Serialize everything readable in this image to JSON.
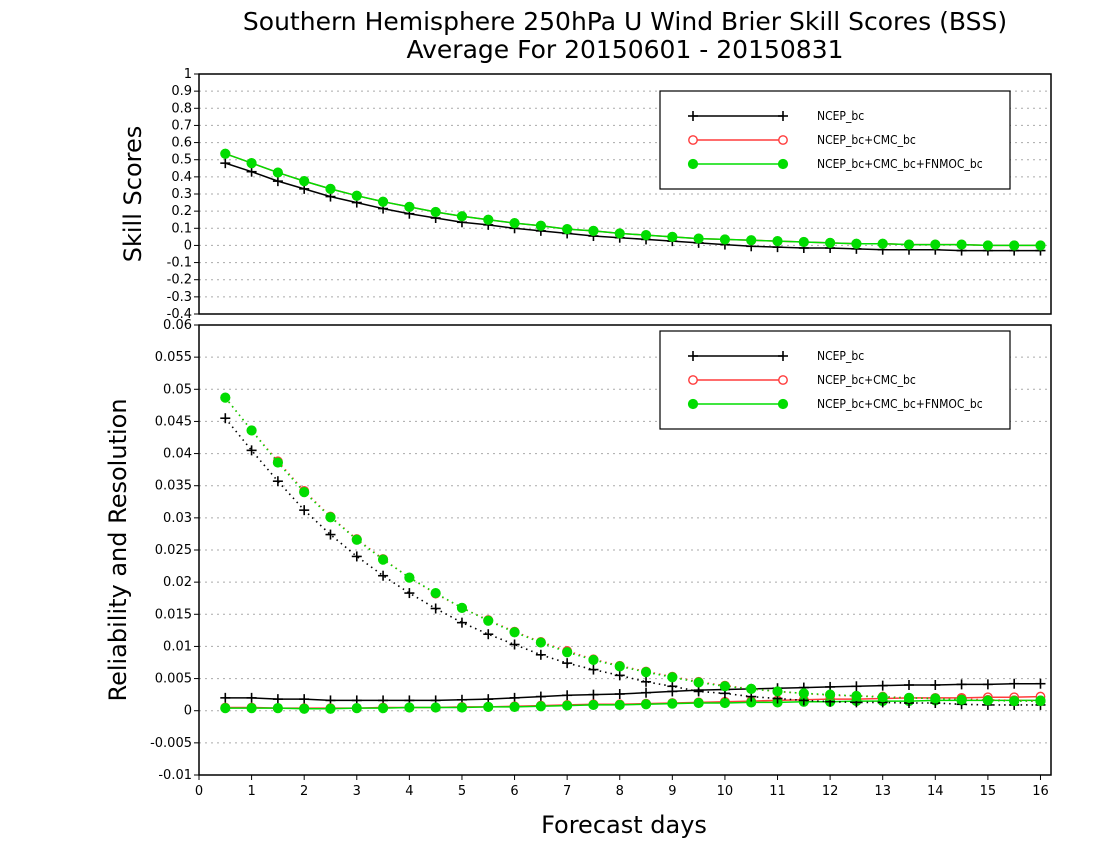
{
  "title": {
    "line1": "Southern Hemisphere 250hPa U Wind Brier Skill Scores (BSS)",
    "line2": "Average For 20150601 - 20150831"
  },
  "colors": {
    "NCEP_bc": "#000000",
    "NCEP_bc+CMC_bc": "#ff3b3b",
    "NCEP_bc+CMC_bc+FNMOC_bc": "#00dd00"
  },
  "chart_data": [
    {
      "type": "line",
      "panel": "top",
      "ylabel": "Skill Scores",
      "xlabel": "",
      "xlim": [
        0,
        16.2
      ],
      "ylim": [
        -0.4,
        1
      ],
      "yticks": [
        "-0.4",
        "-0.3",
        "-0.2",
        "-0.1",
        "0",
        "0.1",
        "0.2",
        "0.3",
        "0.4",
        "0.5",
        "0.6",
        "0.7",
        "0.8",
        "0.9",
        "1"
      ],
      "grid": true,
      "legend_position": "top-right",
      "x": [
        0.5,
        1,
        1.5,
        2,
        2.5,
        3,
        3.5,
        4,
        4.5,
        5,
        5.5,
        6,
        6.5,
        7,
        7.5,
        8,
        8.5,
        9,
        9.5,
        10,
        10.5,
        11,
        11.5,
        12,
        12.5,
        13,
        13.5,
        14,
        14.5,
        15,
        15.5,
        16
      ],
      "series": [
        {
          "name": "NCEP_bc",
          "marker": "plus",
          "values": [
            0.48,
            0.43,
            0.375,
            0.33,
            0.285,
            0.25,
            0.215,
            0.185,
            0.16,
            0.135,
            0.12,
            0.1,
            0.085,
            0.07,
            0.055,
            0.045,
            0.035,
            0.025,
            0.015,
            0.005,
            -0.005,
            -0.01,
            -0.015,
            -0.015,
            -0.02,
            -0.025,
            -0.025,
            -0.025,
            -0.03,
            -0.03,
            -0.03,
            -0.03
          ]
        },
        {
          "name": "NCEP_bc+CMC_bc",
          "marker": "open-circle",
          "values": [
            0.535,
            0.48,
            0.425,
            0.375,
            0.33,
            0.29,
            0.255,
            0.225,
            0.195,
            0.17,
            0.15,
            0.13,
            0.115,
            0.095,
            0.085,
            0.07,
            0.06,
            0.05,
            0.04,
            0.035,
            0.03,
            0.025,
            0.02,
            0.015,
            0.01,
            0.01,
            0.005,
            0.005,
            0.005,
            0.0,
            0.0,
            0.0
          ]
        },
        {
          "name": "NCEP_bc+CMC_bc+FNMOC_bc",
          "marker": "filled-circle",
          "values": [
            0.535,
            0.48,
            0.425,
            0.375,
            0.33,
            0.29,
            0.255,
            0.225,
            0.195,
            0.17,
            0.15,
            0.13,
            0.115,
            0.095,
            0.085,
            0.07,
            0.06,
            0.05,
            0.04,
            0.035,
            0.03,
            0.025,
            0.02,
            0.015,
            0.01,
            0.01,
            0.005,
            0.005,
            0.005,
            0.0,
            0.0,
            0.0
          ]
        }
      ],
      "legend": [
        "NCEP_bc",
        "NCEP_bc+CMC_bc",
        "NCEP_bc+CMC_bc+FNMOC_bc"
      ]
    },
    {
      "type": "line",
      "panel": "bottom",
      "ylabel": "Reliability and Resolution",
      "xlabel": "Forecast days",
      "xlim": [
        0,
        16.2
      ],
      "ylim": [
        -0.01,
        0.06
      ],
      "xticks": [
        "0",
        "1",
        "2",
        "3",
        "4",
        "5",
        "6",
        "7",
        "8",
        "9",
        "10",
        "11",
        "12",
        "13",
        "14",
        "15",
        "16"
      ],
      "yticks": [
        "-0.01",
        "-0.005",
        "0",
        "0.005",
        "0.01",
        "0.015",
        "0.02",
        "0.025",
        "0.03",
        "0.035",
        "0.04",
        "0.045",
        "0.05",
        "0.055",
        "0.06"
      ],
      "grid": true,
      "legend_position": "top-right",
      "x": [
        0.5,
        1,
        1.5,
        2,
        2.5,
        3,
        3.5,
        4,
        4.5,
        5,
        5.5,
        6,
        6.5,
        7,
        7.5,
        8,
        8.5,
        9,
        9.5,
        10,
        10.5,
        11,
        11.5,
        12,
        12.5,
        13,
        13.5,
        14,
        14.5,
        15,
        15.5,
        16
      ],
      "series": [
        {
          "name": "NCEP_bc",
          "metric": "reliability",
          "style": "solid",
          "marker": "plus",
          "values": [
            0.002,
            0.002,
            0.0018,
            0.0018,
            0.0016,
            0.0016,
            0.0016,
            0.0016,
            0.0016,
            0.0017,
            0.0018,
            0.002,
            0.0022,
            0.0024,
            0.0025,
            0.0026,
            0.0028,
            0.003,
            0.0032,
            0.0033,
            0.0034,
            0.0035,
            0.0036,
            0.0037,
            0.0038,
            0.0039,
            0.004,
            0.004,
            0.0041,
            0.0041,
            0.0042,
            0.0042
          ]
        },
        {
          "name": "NCEP_bc+CMC_bc",
          "metric": "reliability",
          "style": "solid",
          "marker": "open-circle",
          "values": [
            0.0005,
            0.0005,
            0.0004,
            0.0004,
            0.0004,
            0.0004,
            0.0005,
            0.0005,
            0.0005,
            0.0006,
            0.0006,
            0.0007,
            0.0008,
            0.0009,
            0.001,
            0.001,
            0.0011,
            0.0012,
            0.0013,
            0.0014,
            0.0015,
            0.0016,
            0.0017,
            0.0018,
            0.0018,
            0.0019,
            0.002,
            0.002,
            0.002,
            0.0021,
            0.0021,
            0.0022
          ]
        },
        {
          "name": "NCEP_bc+CMC_bc+FNMOC_bc",
          "metric": "reliability",
          "style": "solid",
          "marker": "filled-circle",
          "values": [
            0.0004,
            0.0004,
            0.0004,
            0.0003,
            0.0003,
            0.0004,
            0.0004,
            0.0005,
            0.0005,
            0.0005,
            0.0006,
            0.0006,
            0.0007,
            0.0008,
            0.0009,
            0.0009,
            0.001,
            0.0011,
            0.0012,
            0.0012,
            0.0013,
            0.0013,
            0.0014,
            0.0014,
            0.0015,
            0.0015,
            0.0015,
            0.0016,
            0.0016,
            0.0016,
            0.0016,
            0.0016
          ]
        },
        {
          "name": "NCEP_bc",
          "metric": "resolution",
          "style": "dotted",
          "marker": "plus",
          "values": [
            0.0455,
            0.0405,
            0.0357,
            0.0312,
            0.0274,
            0.024,
            0.021,
            0.0183,
            0.0159,
            0.0137,
            0.0119,
            0.0103,
            0.0087,
            0.0074,
            0.0064,
            0.0055,
            0.0045,
            0.0038,
            0.003,
            0.0027,
            0.0022,
            0.0019,
            0.0016,
            0.0014,
            0.0013,
            0.0013,
            0.0012,
            0.0012,
            0.001,
            0.0009,
            0.0009,
            0.0009
          ]
        },
        {
          "name": "NCEP_bc+CMC_bc",
          "metric": "resolution",
          "style": "dotted",
          "marker": "open-circle",
          "values": [
            0.0487,
            0.0436,
            0.0388,
            0.0342,
            0.0302,
            0.0267,
            0.0236,
            0.0207,
            0.0182,
            0.016,
            0.0141,
            0.0123,
            0.0107,
            0.0093,
            0.008,
            0.007,
            0.0061,
            0.0053,
            0.0045,
            0.0039,
            0.0034,
            0.003,
            0.0027,
            0.0024,
            0.0023,
            0.0022,
            0.002,
            0.0019,
            0.0018,
            0.0017,
            0.0016,
            0.0015
          ]
        },
        {
          "name": "NCEP_bc+CMC_bc+FNMOC_bc",
          "metric": "resolution",
          "style": "dotted",
          "marker": "filled-circle",
          "values": [
            0.0487,
            0.0436,
            0.0386,
            0.034,
            0.0301,
            0.0266,
            0.0235,
            0.0207,
            0.0183,
            0.016,
            0.014,
            0.0122,
            0.0106,
            0.0091,
            0.0079,
            0.0069,
            0.006,
            0.0052,
            0.0044,
            0.0038,
            0.0034,
            0.003,
            0.0027,
            0.0025,
            0.0023,
            0.0021,
            0.002,
            0.0019,
            0.0017,
            0.0016,
            0.0015,
            0.0015
          ]
        }
      ],
      "legend": [
        "NCEP_bc",
        "NCEP_bc+CMC_bc",
        "NCEP_bc+CMC_bc+FNMOC_bc"
      ]
    }
  ]
}
